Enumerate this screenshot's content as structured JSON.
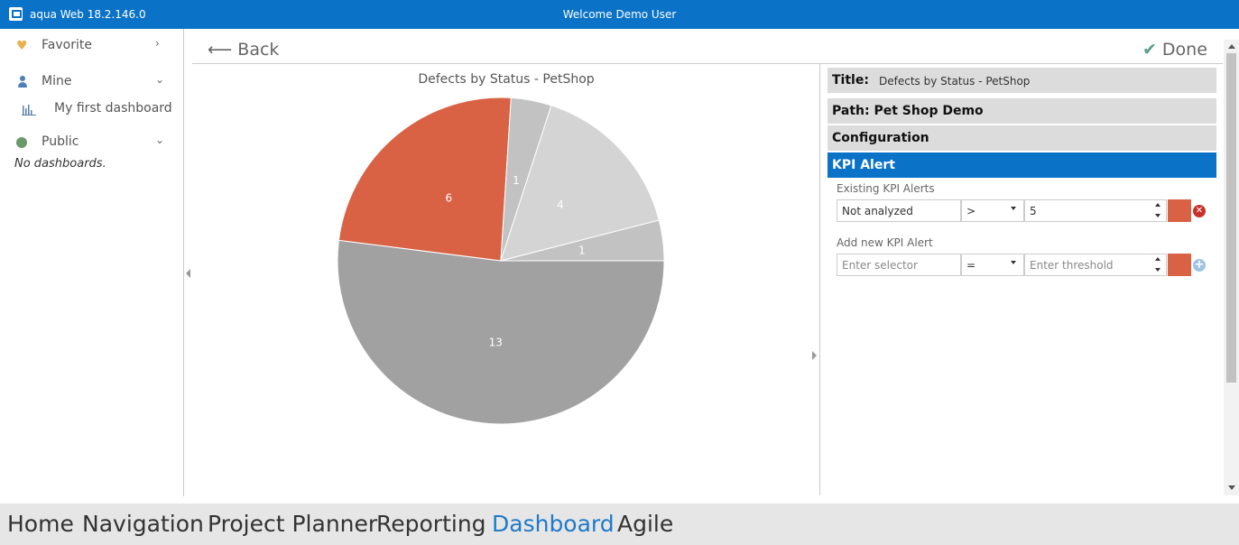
{
  "titlebar": {
    "app_name": "aqua Web 18.2.146.0",
    "welcome": "Welcome Demo User",
    "accent": "#0a72c7"
  },
  "sidebar": {
    "favorite": {
      "label": "Favorite",
      "icon": "heart-icon"
    },
    "mine": {
      "label": "Mine",
      "icon": "person-icon",
      "items": [
        {
          "label": "My first dashboard",
          "icon": "bar-chart-icon"
        }
      ]
    },
    "public": {
      "label": "Public",
      "icon": "globe-icon",
      "empty": "No dashboards."
    }
  },
  "header": {
    "back_label": "Back",
    "done_label": "Done"
  },
  "chart_data": {
    "type": "pie",
    "title": "Defects by Status - PetShop",
    "values": [
      13,
      6,
      1,
      4,
      1
    ],
    "colors": [
      "#a1a1a1",
      "#d96244",
      "#c2c2c2",
      "#d4d4d4",
      "#c2c2c2"
    ]
  },
  "panel": {
    "title_label": "Title:",
    "title_value": "Defects by Status - PetShop",
    "path_label": "Path: Pet Shop Demo",
    "configuration_label": "Configuration",
    "kpi_label": "KPI Alert",
    "existing_label": "Existing KPI Alerts",
    "existing": {
      "selector": "Not analyzed",
      "operator": ">",
      "threshold": "5",
      "color": "#d96244"
    },
    "add_label": "Add new KPI Alert",
    "new": {
      "selector_placeholder": "Enter selector",
      "operator": "=",
      "threshold_placeholder": "Enter threshold",
      "color": "#d96244"
    }
  },
  "bottom_nav": [
    {
      "label": "Home",
      "active": false
    },
    {
      "label": "Navigation",
      "active": false
    },
    {
      "label": "Project Planner",
      "active": false
    },
    {
      "label": "Reporting",
      "active": false
    },
    {
      "label": "Dashboard",
      "active": true
    },
    {
      "label": "Agile",
      "active": false
    }
  ]
}
